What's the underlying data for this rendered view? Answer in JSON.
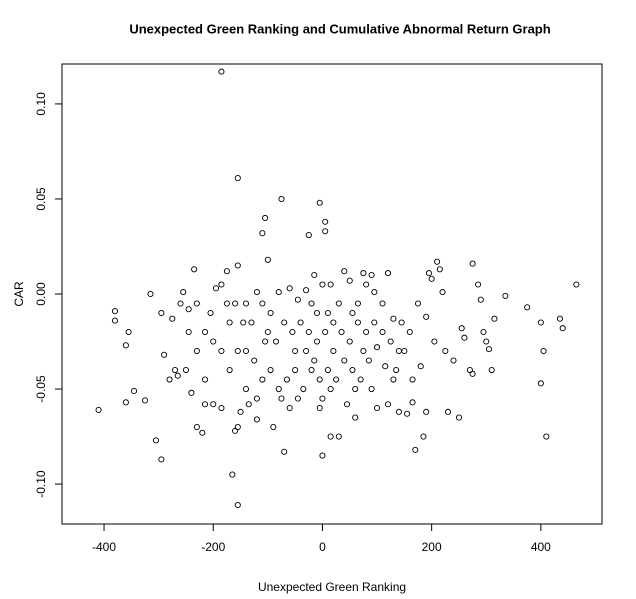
{
  "chart_data": {
    "type": "scatter",
    "title": "Unexpected Green Ranking and Cumulative Abnormal Return Graph",
    "xlabel": "Unexpected Green Ranking",
    "ylabel": "CAR",
    "color": "#000000",
    "xlim": [
      -477,
      512
    ],
    "ylim": [
      -0.121,
      0.121
    ],
    "xticks": [
      -400,
      -200,
      0,
      200,
      400
    ],
    "yticks": [
      {
        "value": -0.1,
        "label": "-0.10"
      },
      -0.05,
      {
        "value": 0,
        "label": "0.00"
      },
      0.05,
      {
        "value": 0.1,
        "label": "0.10"
      }
    ],
    "x": [
      -185,
      -155,
      -75,
      -5,
      5,
      5,
      -25,
      -105,
      -110,
      -100,
      -155,
      -175,
      -235,
      -155,
      -165,
      -155,
      -160,
      0,
      -70,
      -295,
      -305,
      -410,
      -325,
      -360,
      -345,
      -380,
      -380,
      -360,
      -355,
      -315,
      -295,
      465,
      435,
      440,
      400,
      405,
      410,
      400,
      375,
      335,
      315,
      310,
      300,
      305,
      295,
      285,
      290,
      275,
      270,
      275,
      255,
      260,
      250,
      230,
      220,
      215,
      210,
      200,
      195,
      190,
      185,
      170,
      165,
      155,
      140,
      120,
      100,
      120,
      90,
      75,
      60,
      45,
      30,
      15,
      -90,
      -120,
      -135,
      -150,
      -185,
      -200,
      -215,
      -220,
      -230,
      -240,
      -280,
      -265,
      -270,
      -290,
      -250,
      -275,
      -260,
      -255,
      -245,
      -230,
      -215,
      -205,
      -195,
      -185,
      -175,
      -170,
      -160,
      -145,
      -130,
      -120,
      -110,
      -95,
      -80,
      -60,
      -45,
      -30,
      -15,
      0,
      15,
      30,
      40,
      50,
      65,
      80,
      95,
      110,
      130,
      145,
      160,
      175,
      190,
      205,
      225,
      240,
      180,
      165,
      150,
      135,
      115,
      100,
      85,
      70,
      55,
      40,
      25,
      10,
      -5,
      -20,
      -35,
      -50,
      -65,
      -80,
      -95,
      -110,
      -125,
      -140,
      -155,
      -170,
      -185,
      -200,
      -215,
      -230,
      -245,
      -100,
      -85,
      -70,
      -55,
      -40,
      -25,
      -10,
      5,
      20,
      35,
      50,
      65,
      80,
      95,
      110,
      125,
      140,
      -10,
      -20,
      10,
      20,
      -30,
      -15,
      0,
      -5,
      15,
      -45,
      -60,
      -75,
      -120,
      -140,
      -105,
      60,
      90,
      130,
      55,
      -140,
      -50,
      75
    ],
    "values": [
      0.117,
      0.061,
      0.05,
      0.048,
      0.038,
      0.033,
      0.031,
      0.04,
      0.032,
      0.018,
      0.015,
      0.012,
      0.013,
      -0.111,
      -0.095,
      -0.07,
      -0.072,
      -0.085,
      -0.083,
      -0.087,
      -0.077,
      -0.061,
      -0.056,
      -0.057,
      -0.051,
      -0.014,
      -0.009,
      -0.027,
      -0.02,
      0.0,
      -0.01,
      0.005,
      -0.013,
      -0.018,
      -0.015,
      -0.03,
      -0.075,
      -0.047,
      -0.007,
      -0.001,
      -0.013,
      -0.04,
      -0.025,
      -0.029,
      -0.02,
      0.005,
      -0.003,
      0.016,
      -0.04,
      -0.042,
      -0.018,
      -0.023,
      -0.065,
      -0.062,
      0.001,
      0.013,
      0.017,
      0.008,
      0.011,
      -0.062,
      -0.075,
      -0.082,
      -0.057,
      -0.063,
      -0.062,
      -0.058,
      -0.06,
      0.011,
      0.01,
      0.011,
      -0.065,
      -0.058,
      -0.075,
      -0.075,
      -0.07,
      -0.066,
      -0.058,
      -0.062,
      -0.06,
      -0.058,
      -0.058,
      -0.073,
      -0.07,
      -0.052,
      -0.045,
      -0.043,
      -0.04,
      -0.032,
      -0.04,
      -0.013,
      -0.005,
      0.001,
      -0.008,
      -0.005,
      -0.02,
      -0.01,
      0.003,
      0.005,
      -0.005,
      -0.015,
      -0.005,
      -0.015,
      -0.015,
      0.001,
      -0.005,
      -0.01,
      0.001,
      0.003,
      -0.003,
      0.002,
      0.01,
      0.005,
      0.005,
      -0.005,
      0.012,
      0.007,
      -0.005,
      0.005,
      0.001,
      -0.005,
      -0.013,
      -0.015,
      -0.02,
      -0.005,
      -0.012,
      -0.025,
      -0.03,
      -0.035,
      -0.038,
      -0.045,
      -0.03,
      -0.04,
      -0.038,
      -0.028,
      -0.035,
      -0.045,
      -0.04,
      -0.035,
      -0.045,
      -0.04,
      -0.045,
      -0.04,
      -0.05,
      -0.04,
      -0.045,
      -0.05,
      -0.04,
      -0.045,
      -0.035,
      -0.03,
      -0.03,
      -0.04,
      -0.03,
      -0.025,
      -0.045,
      -0.03,
      -0.02,
      -0.02,
      -0.025,
      -0.015,
      -0.02,
      -0.015,
      -0.02,
      -0.025,
      -0.02,
      -0.015,
      -0.02,
      -0.025,
      -0.015,
      -0.02,
      -0.015,
      -0.02,
      -0.025,
      -0.03,
      -0.01,
      -0.005,
      -0.01,
      -0.03,
      -0.03,
      -0.035,
      -0.055,
      -0.06,
      -0.05,
      -0.055,
      -0.06,
      -0.055,
      -0.055,
      -0.05,
      -0.025,
      -0.05,
      -0.05,
      -0.045,
      -0.01,
      -0.005,
      -0.03,
      -0.03
    ]
  }
}
